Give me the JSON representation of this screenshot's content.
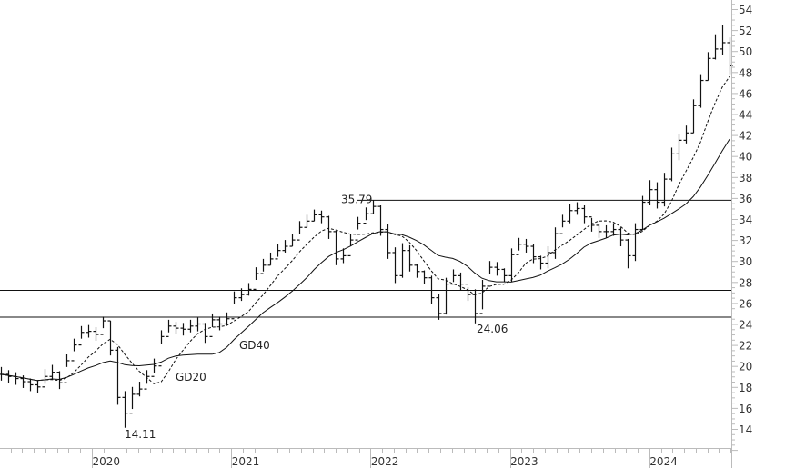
{
  "chart_data": {
    "type": "ohlc-bar",
    "title": "",
    "xlabel": "",
    "ylabel": "",
    "ylim": [
      12,
      54
    ],
    "y_ticks": [
      14,
      16,
      18,
      20,
      22,
      24,
      26,
      28,
      30,
      32,
      34,
      36,
      38,
      40,
      42,
      44,
      46,
      48,
      50,
      52,
      54
    ],
    "x_ticks": [
      {
        "label": "2020",
        "year": 2020
      },
      {
        "label": "2021",
        "year": 2021
      },
      {
        "label": "2022",
        "year": 2022
      },
      {
        "label": "2023",
        "year": 2023
      },
      {
        "label": "2024",
        "year": 2024
      }
    ],
    "xlim_years": [
      2019.34,
      2024.62
    ],
    "grid": false,
    "start_year": 2019.34,
    "bar_step_years": 0.0523,
    "close": [
      19.2,
      19.0,
      18.8,
      18.5,
      18.2,
      18.0,
      19.0,
      19.4,
      18.4,
      20.5,
      22.0,
      23.2,
      23.3,
      23.0,
      24.3,
      21.5,
      17.0,
      15.5,
      17.3,
      17.8,
      19.0,
      20.0,
      22.8,
      23.8,
      23.6,
      23.5,
      23.8,
      24.0,
      22.8,
      24.4,
      24.0,
      24.5,
      26.5,
      26.8,
      27.3,
      28.8,
      29.6,
      30.2,
      31.0,
      31.4,
      32.0,
      33.2,
      33.8,
      34.4,
      34.2,
      32.8,
      30.2,
      30.5,
      32.0,
      33.6,
      34.5,
      35.2,
      33.0,
      30.8,
      28.6,
      31.0,
      29.6,
      29.0,
      28.4,
      26.5,
      25.0,
      27.8,
      28.6,
      27.8,
      26.8,
      25.0,
      27.6,
      29.4,
      29.2,
      28.6,
      30.6,
      31.6,
      31.4,
      30.4,
      29.8,
      30.8,
      32.6,
      33.8,
      34.8,
      35.0,
      34.2,
      33.4,
      32.8,
      32.8,
      33.0,
      32.0,
      30.5,
      33.0,
      35.6,
      36.8,
      35.6,
      37.8,
      40.2,
      41.5,
      42.2,
      44.8,
      47.2,
      49.3,
      50.2,
      50.8,
      48.6
    ],
    "high": [
      19.9,
      19.6,
      19.4,
      19.1,
      18.8,
      18.6,
      19.7,
      20.1,
      19.5,
      21.1,
      22.6,
      23.8,
      23.9,
      23.7,
      24.7,
      24.3,
      21.8,
      17.6,
      18.0,
      18.5,
      19.6,
      20.7,
      23.4,
      24.4,
      24.2,
      24.1,
      24.4,
      24.6,
      24.1,
      25.0,
      24.7,
      25.1,
      27.1,
      27.4,
      27.9,
      29.4,
      30.2,
      30.8,
      31.6,
      32.0,
      32.6,
      33.8,
      34.4,
      34.9,
      34.8,
      34.3,
      32.9,
      31.2,
      32.6,
      34.2,
      35.1,
      35.79,
      35.3,
      33.5,
      31.3,
      31.7,
      31.5,
      29.7,
      29.1,
      28.6,
      26.9,
      28.4,
      29.2,
      28.9,
      27.5,
      27.3,
      28.2,
      30.0,
      29.9,
      29.3,
      31.2,
      32.2,
      32.1,
      31.6,
      30.5,
      31.4,
      33.2,
      34.4,
      35.4,
      35.6,
      35.3,
      34.1,
      33.5,
      33.4,
      33.6,
      33.2,
      32.1,
      33.6,
      36.2,
      37.7,
      37.5,
      38.4,
      40.8,
      42.1,
      42.9,
      45.4,
      47.8,
      49.9,
      51.6,
      52.5,
      51.3
    ],
    "low": [
      18.6,
      18.4,
      18.2,
      17.9,
      17.6,
      17.4,
      18.3,
      18.7,
      17.8,
      19.9,
      21.4,
      22.6,
      22.7,
      22.4,
      23.6,
      21.0,
      16.3,
      14.11,
      15.9,
      17.1,
      18.3,
      19.3,
      22.1,
      23.2,
      23.0,
      22.9,
      23.2,
      23.3,
      22.2,
      23.7,
      23.4,
      23.9,
      25.9,
      26.2,
      26.7,
      28.2,
      29.0,
      29.6,
      30.4,
      30.8,
      31.4,
      32.6,
      33.2,
      33.8,
      33.6,
      32.1,
      29.6,
      29.8,
      31.4,
      33.0,
      33.9,
      34.5,
      32.4,
      30.2,
      27.9,
      28.4,
      29.0,
      28.4,
      27.8,
      25.9,
      24.4,
      24.9,
      28.0,
      27.2,
      26.2,
      24.06,
      25.4,
      28.8,
      28.6,
      28.0,
      28.0,
      31.0,
      30.8,
      29.8,
      29.2,
      29.3,
      30.2,
      33.2,
      33.6,
      34.4,
      33.6,
      32.8,
      32.2,
      32.2,
      32.4,
      31.4,
      29.3,
      30.0,
      33.0,
      35.3,
      35.0,
      35.2,
      37.6,
      39.6,
      41.2,
      42.2,
      44.6,
      47.2,
      49.2,
      49.6,
      47.8
    ],
    "moving_averages": [
      {
        "name": "GD20",
        "window_bars": 7,
        "style": "dashed"
      },
      {
        "name": "GD40",
        "window_bars": 15,
        "style": "solid"
      }
    ],
    "horizontal_lines": [
      {
        "value": 35.79,
        "from_year": 2021.9
      },
      {
        "value": 27.2,
        "from_year": 2019.34
      },
      {
        "value": 24.65,
        "from_year": 2019.34
      }
    ],
    "annotations": [
      {
        "text": "35.79",
        "price": 35.79,
        "year": 2021.9
      },
      {
        "text": "14.11",
        "price": 14.11,
        "year": 2020.23
      },
      {
        "text": "24.06",
        "price": 24.06,
        "year": 2022.74
      },
      {
        "text": "GD40",
        "price": 22.8,
        "year": 2021.05
      },
      {
        "text": "GD20",
        "price": 19.8,
        "year": 2020.6
      }
    ],
    "colors": {
      "bars": "#111111",
      "axis": "#bbbbbb",
      "lines": "#111111",
      "text": "#333333"
    }
  }
}
